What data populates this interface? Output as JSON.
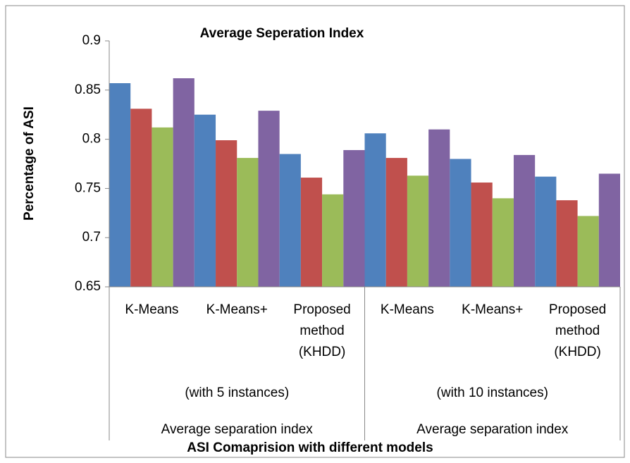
{
  "chart_data": {
    "type": "bar",
    "title": "Average Seperation Index",
    "y_label": "Percentage of ASI",
    "x_label": "ASI Comaprision with different models",
    "groups": [
      {
        "label": "Average separation index",
        "sublabel": "(with 5 instances)",
        "categories": [
          "K-Means",
          "K-Means+",
          "Proposed method (KHDD)"
        ]
      },
      {
        "label": "Average separation index",
        "sublabel": "(with 10 instances)",
        "categories": [
          "K-Means",
          "K-Means+",
          "Proposed method (KHDD)"
        ]
      }
    ],
    "series": [
      {
        "color": "#4f81bd",
        "values": [
          0.857,
          0.825,
          0.785,
          0.806,
          0.78,
          0.762
        ]
      },
      {
        "color": "#c0504d",
        "values": [
          0.831,
          0.799,
          0.761,
          0.781,
          0.756,
          0.738
        ]
      },
      {
        "color": "#9bbb59",
        "values": [
          0.812,
          0.781,
          0.744,
          0.763,
          0.74,
          0.722
        ]
      },
      {
        "color": "#8064a2",
        "values": [
          0.862,
          0.829,
          0.789,
          0.81,
          0.784,
          0.765
        ]
      }
    ],
    "ylim": [
      0.65,
      0.9
    ],
    "yticks": [
      0.65,
      0.7,
      0.75,
      0.8,
      0.85,
      0.9
    ]
  }
}
